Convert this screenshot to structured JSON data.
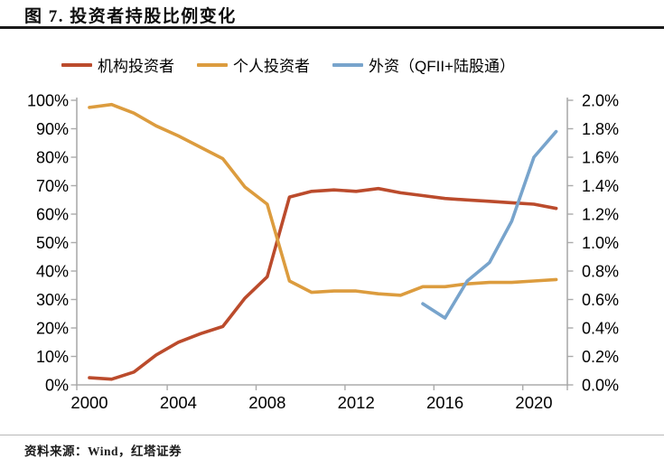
{
  "figure": {
    "title": "图 7. 投资者持股比例变化",
    "source": "资料来源：Wind，红塔证券"
  },
  "legend": [
    {
      "label": "机构投资者",
      "color": "#BB4B2C"
    },
    {
      "label": "个人投资者",
      "color": "#DC9C3E"
    },
    {
      "label": "外资（QFII+陆股通）",
      "color": "#78A4CC"
    }
  ],
  "chart_data": {
    "type": "line",
    "title": "图 7. 投资者持股比例变化",
    "x": [
      2000,
      2001,
      2002,
      2003,
      2004,
      2005,
      2006,
      2007,
      2008,
      2009,
      2010,
      2011,
      2012,
      2013,
      2014,
      2015,
      2016,
      2017,
      2018,
      2019,
      2020,
      2021
    ],
    "x_tick_labels": [
      "2000",
      "2004",
      "2008",
      "2012",
      "2016",
      "2020"
    ],
    "x_tick_years": [
      2000,
      2004,
      2008,
      2012,
      2016,
      2020
    ],
    "left_axis": {
      "min": 0,
      "max": 100,
      "step": 10,
      "unit": "%",
      "tick_labels": [
        "0%",
        "10%",
        "20%",
        "30%",
        "40%",
        "50%",
        "60%",
        "70%",
        "80%",
        "90%",
        "100%"
      ]
    },
    "right_axis": {
      "min": 0,
      "max": 2,
      "step": 0.2,
      "unit": "%",
      "tick_labels": [
        "0.0%",
        "0.2%",
        "0.4%",
        "0.6%",
        "0.8%",
        "1.0%",
        "1.2%",
        "1.4%",
        "1.6%",
        "1.8%",
        "2.0%"
      ]
    },
    "grid": false,
    "legend_position": "top",
    "axis_color": "#ABABAB",
    "tick_text_color": "#000000",
    "series": [
      {
        "name": "机构投资者",
        "axis": "left",
        "color": "#BB4B2C",
        "values": [
          2.5,
          2,
          4.5,
          10.5,
          15,
          18,
          20.5,
          30.5,
          38,
          66,
          68,
          68.5,
          68,
          69,
          67.5,
          66.5,
          65.5,
          65,
          64.5,
          64,
          63.5,
          62
        ]
      },
      {
        "name": "个人投资者",
        "axis": "left",
        "color": "#DC9C3E",
        "values": [
          97.5,
          98.5,
          95.5,
          91,
          87.5,
          83.5,
          79.5,
          69.5,
          63.5,
          36.5,
          32.5,
          33,
          33,
          32,
          31.5,
          34.5,
          34.5,
          35.5,
          36,
          36,
          36.5,
          37
        ]
      },
      {
        "name": "外资（QFII+陆股通）",
        "axis": "right",
        "color": "#78A4CC",
        "values": [
          null,
          null,
          null,
          null,
          null,
          null,
          null,
          null,
          null,
          null,
          null,
          null,
          null,
          null,
          null,
          0.57,
          0.47,
          0.73,
          0.86,
          1.15,
          1.6,
          1.78
        ]
      }
    ]
  }
}
